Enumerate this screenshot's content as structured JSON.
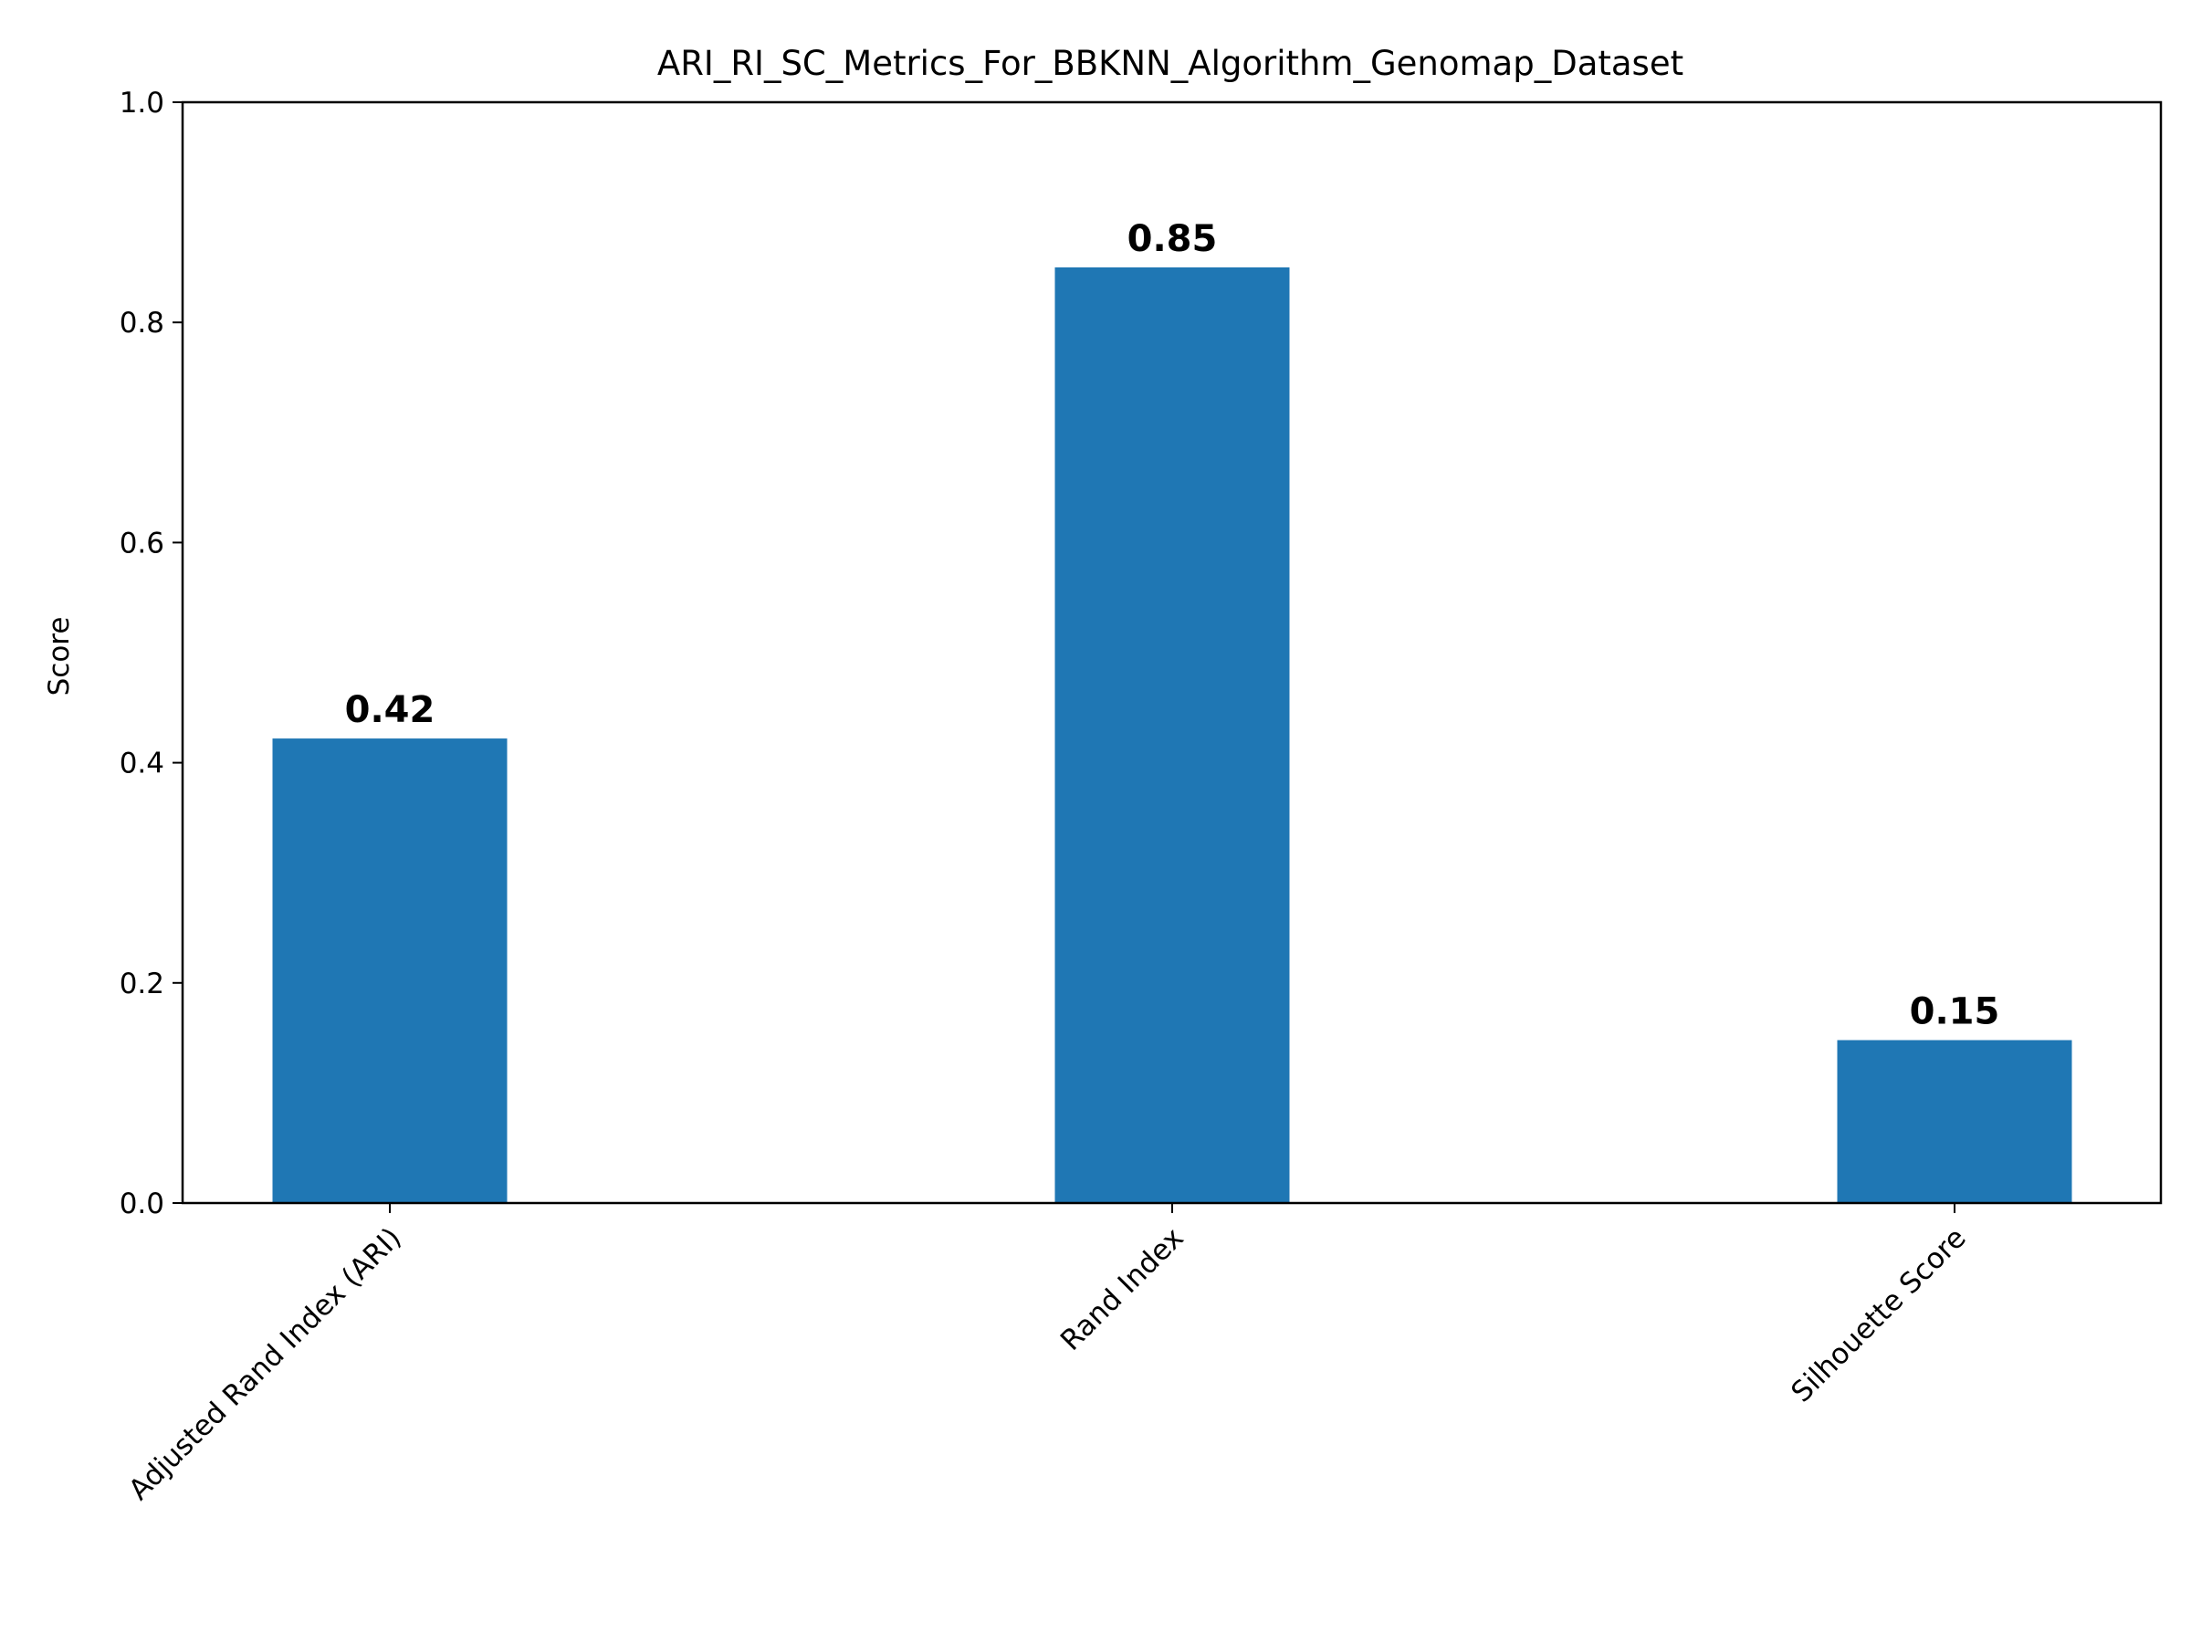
{
  "chart_data": {
    "type": "bar",
    "title": "ARI_RI_SC_Metrics_For_BBKNN_Algorithm_Genomap_Dataset",
    "xlabel": "",
    "ylabel": "Score",
    "categories": [
      "Adjusted Rand Index (ARI)",
      "Rand Index",
      "Silhouette Score"
    ],
    "values": [
      0.422,
      0.85,
      0.148
    ],
    "data_labels": [
      "0.42",
      "0.85",
      "0.15"
    ],
    "ylim": [
      0,
      1.0
    ],
    "yticks": [
      "0.0",
      "0.2",
      "0.4",
      "0.6",
      "0.8",
      "1.0"
    ],
    "ytick_values": [
      0,
      0.2,
      0.4,
      0.6,
      0.8,
      1.0
    ],
    "bar_color": "#1f77b4",
    "grid": false,
    "legend": "none",
    "xtick_rotation": 45
  }
}
